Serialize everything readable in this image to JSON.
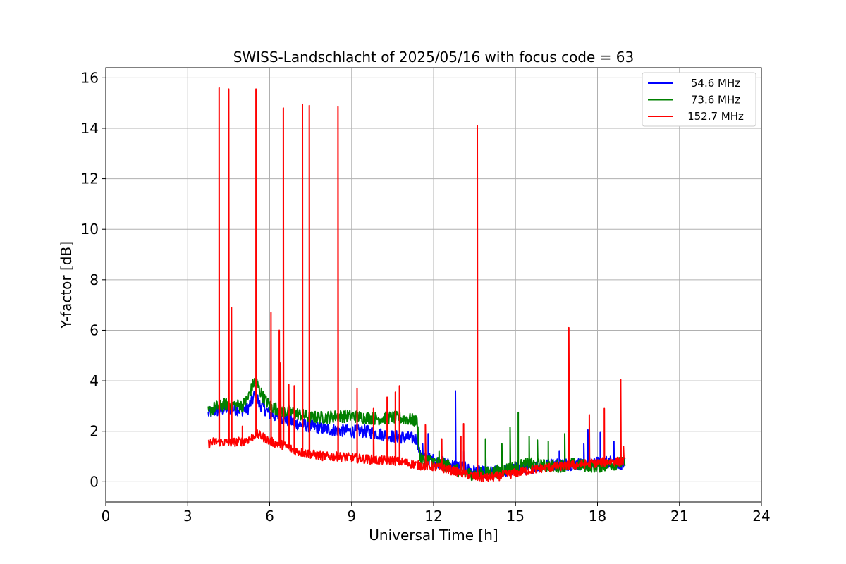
{
  "chart_data": {
    "type": "line",
    "title": "SWISS-Landschlacht of 2025/05/16 with focus code = 63",
    "xlabel": "Universal Time [h]",
    "ylabel": "Y-factor [dB]",
    "xlim": [
      0,
      24
    ],
    "ylim": [
      -0.8,
      16.4
    ],
    "xticks": [
      0,
      3,
      6,
      9,
      12,
      15,
      18,
      21,
      24
    ],
    "yticks": [
      0,
      2,
      4,
      6,
      8,
      10,
      12,
      14,
      16
    ],
    "grid": true,
    "legend_position": "top-right",
    "series": [
      {
        "name": "54.6 MHz",
        "color": "#0000ff",
        "band": 0.25,
        "points": [
          [
            3.75,
            2.7
          ],
          [
            4.0,
            2.8
          ],
          [
            4.5,
            2.9
          ],
          [
            5.0,
            2.85
          ],
          [
            5.2,
            2.9
          ],
          [
            5.4,
            3.3
          ],
          [
            5.5,
            3.6
          ],
          [
            5.6,
            3.1
          ],
          [
            5.8,
            2.9
          ],
          [
            6.0,
            2.7
          ],
          [
            6.5,
            2.5
          ],
          [
            7.0,
            2.3
          ],
          [
            7.5,
            2.2
          ],
          [
            8.0,
            2.1
          ],
          [
            8.5,
            2.05
          ],
          [
            9.0,
            2.0
          ],
          [
            9.5,
            2.0
          ],
          [
            10.0,
            1.9
          ],
          [
            10.5,
            1.8
          ],
          [
            11.0,
            1.75
          ],
          [
            11.4,
            1.7
          ],
          [
            11.5,
            1.0
          ],
          [
            12.0,
            0.85
          ],
          [
            12.5,
            0.7
          ],
          [
            13.0,
            0.6
          ],
          [
            13.5,
            0.4
          ],
          [
            14.0,
            0.35
          ],
          [
            14.5,
            0.4
          ],
          [
            15.0,
            0.5
          ],
          [
            15.5,
            0.55
          ],
          [
            16.0,
            0.65
          ],
          [
            16.5,
            0.7
          ],
          [
            17.0,
            0.7
          ],
          [
            17.5,
            0.7
          ],
          [
            18.0,
            0.75
          ],
          [
            18.5,
            0.8
          ],
          [
            19.0,
            0.7
          ]
        ],
        "spikes": [
          [
            11.6,
            1.5
          ],
          [
            11.8,
            1.9
          ],
          [
            12.8,
            3.6
          ],
          [
            13.1,
            1.2
          ],
          [
            16.6,
            1.2
          ],
          [
            17.5,
            1.5
          ],
          [
            17.65,
            2.05
          ],
          [
            18.1,
            1.95
          ],
          [
            18.6,
            1.6
          ]
        ]
      },
      {
        "name": "73.6 MHz",
        "color": "#008000",
        "band": 0.25,
        "points": [
          [
            3.75,
            2.75
          ],
          [
            4.0,
            2.95
          ],
          [
            4.5,
            3.1
          ],
          [
            5.0,
            3.0
          ],
          [
            5.2,
            3.3
          ],
          [
            5.4,
            3.9
          ],
          [
            5.5,
            4.0
          ],
          [
            5.6,
            3.7
          ],
          [
            5.8,
            3.3
          ],
          [
            6.0,
            3.0
          ],
          [
            6.5,
            2.8
          ],
          [
            7.0,
            2.7
          ],
          [
            7.5,
            2.55
          ],
          [
            8.0,
            2.55
          ],
          [
            8.5,
            2.6
          ],
          [
            9.0,
            2.6
          ],
          [
            9.5,
            2.55
          ],
          [
            10.0,
            2.5
          ],
          [
            10.5,
            2.55
          ],
          [
            11.0,
            2.5
          ],
          [
            11.4,
            2.4
          ],
          [
            11.5,
            0.9
          ],
          [
            12.0,
            0.8
          ],
          [
            12.5,
            0.65
          ],
          [
            13.0,
            0.35
          ],
          [
            13.5,
            0.3
          ],
          [
            14.0,
            0.35
          ],
          [
            14.5,
            0.45
          ],
          [
            15.0,
            0.6
          ],
          [
            15.5,
            0.7
          ],
          [
            16.0,
            0.65
          ],
          [
            16.5,
            0.6
          ],
          [
            17.0,
            0.7
          ],
          [
            17.5,
            0.65
          ],
          [
            18.0,
            0.6
          ],
          [
            18.5,
            0.7
          ],
          [
            19.0,
            0.75
          ]
        ],
        "spikes": [
          [
            12.2,
            1.2
          ],
          [
            13.9,
            1.7
          ],
          [
            14.5,
            1.5
          ],
          [
            14.8,
            2.15
          ],
          [
            15.1,
            2.75
          ],
          [
            15.5,
            1.8
          ],
          [
            15.8,
            1.65
          ],
          [
            16.2,
            1.6
          ],
          [
            16.8,
            1.9
          ]
        ]
      },
      {
        "name": "152.7 MHz",
        "color": "#ff0000",
        "band": 0.18,
        "points": [
          [
            3.75,
            1.5
          ],
          [
            4.0,
            1.6
          ],
          [
            4.5,
            1.55
          ],
          [
            5.0,
            1.6
          ],
          [
            5.3,
            1.7
          ],
          [
            5.5,
            1.9
          ],
          [
            5.8,
            1.75
          ],
          [
            6.0,
            1.6
          ],
          [
            6.5,
            1.45
          ],
          [
            7.0,
            1.2
          ],
          [
            7.5,
            1.1
          ],
          [
            8.0,
            1.0
          ],
          [
            8.5,
            1.0
          ],
          [
            9.0,
            0.95
          ],
          [
            9.5,
            0.9
          ],
          [
            10.0,
            0.85
          ],
          [
            10.5,
            0.85
          ],
          [
            11.0,
            0.75
          ],
          [
            11.5,
            0.65
          ],
          [
            12.0,
            0.6
          ],
          [
            12.5,
            0.5
          ],
          [
            13.0,
            0.35
          ],
          [
            13.5,
            0.2
          ],
          [
            14.0,
            0.15
          ],
          [
            14.5,
            0.25
          ],
          [
            15.0,
            0.35
          ],
          [
            15.5,
            0.45
          ],
          [
            16.0,
            0.55
          ],
          [
            16.5,
            0.6
          ],
          [
            17.0,
            0.65
          ],
          [
            17.5,
            0.7
          ],
          [
            18.0,
            0.75
          ],
          [
            18.5,
            0.8
          ],
          [
            19.0,
            0.8
          ]
        ],
        "spikes": [
          [
            4.15,
            15.6
          ],
          [
            4.5,
            15.55
          ],
          [
            4.6,
            6.9
          ],
          [
            5.0,
            2.2
          ],
          [
            5.5,
            15.55
          ],
          [
            6.05,
            6.7
          ],
          [
            6.35,
            6.0
          ],
          [
            6.4,
            4.7
          ],
          [
            6.5,
            14.8
          ],
          [
            6.7,
            3.85
          ],
          [
            6.9,
            3.8
          ],
          [
            7.2,
            14.95
          ],
          [
            7.45,
            14.9
          ],
          [
            8.5,
            14.85
          ],
          [
            9.2,
            3.7
          ],
          [
            9.8,
            2.9
          ],
          [
            10.3,
            3.35
          ],
          [
            10.6,
            3.55
          ],
          [
            10.75,
            3.8
          ],
          [
            11.7,
            2.25
          ],
          [
            12.3,
            1.7
          ],
          [
            13.0,
            1.8
          ],
          [
            13.1,
            2.3
          ],
          [
            13.6,
            14.1
          ],
          [
            16.95,
            6.1
          ],
          [
            17.7,
            2.65
          ],
          [
            18.25,
            2.9
          ],
          [
            18.85,
            4.05
          ],
          [
            18.95,
            1.4
          ]
        ]
      }
    ]
  }
}
